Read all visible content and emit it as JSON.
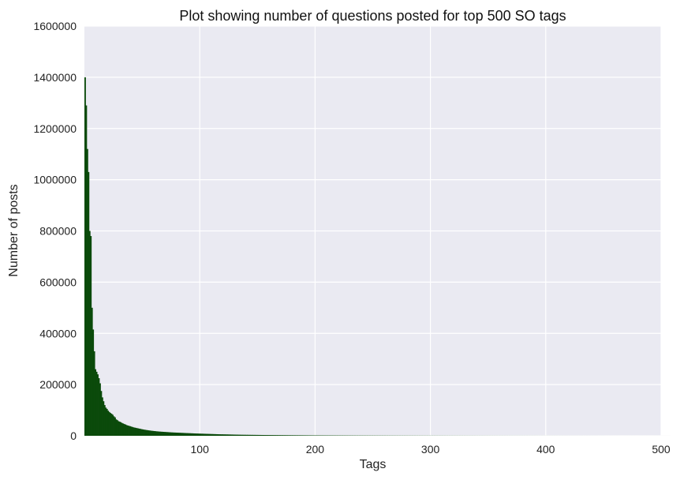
{
  "chart_data": {
    "type": "bar",
    "title": "Plot showing number of questions posted for top 500 SO tags",
    "xlabel": "Tags",
    "ylabel": "Number of posts",
    "xlim": [
      0,
      500
    ],
    "ylim": [
      0,
      1600000
    ],
    "x_ticks": [
      100,
      200,
      300,
      400,
      500
    ],
    "y_ticks": [
      0,
      200000,
      400000,
      600000,
      800000,
      1000000,
      1200000,
      1400000,
      1600000
    ],
    "grid": true,
    "legend": "none",
    "colors": {
      "bar": "#0b4a0b",
      "plot_background": "#eaeaf2",
      "grid": "#ffffff"
    },
    "series": [
      {
        "values": [
          1400000,
          1290000,
          1120000,
          1030000,
          800000,
          780000,
          500000,
          415000,
          330000,
          260000,
          250000,
          240000,
          225000,
          205000,
          175000,
          150000,
          135000,
          120000,
          110000,
          105000,
          98000,
          93000,
          89000,
          86000,
          82000,
          76000,
          72000,
          64000,
          61000,
          57000,
          55000,
          53000,
          50000,
          48000,
          46000,
          44000,
          42000,
          40000,
          39000,
          37500,
          36000,
          34500,
          33000,
          32000,
          31000,
          30000,
          29000,
          28000,
          27000,
          26000,
          25000,
          24200,
          23400,
          22700,
          22000,
          21300,
          20700,
          20100,
          19500,
          19000,
          18500,
          18000,
          17500,
          17100,
          16700,
          16300,
          16000,
          15700,
          15400,
          15100,
          14800,
          14500,
          14200,
          13900,
          13600,
          13300,
          13000,
          12800,
          12600,
          12400,
          12200,
          12000,
          11800,
          11600,
          11400,
          11200,
          11000,
          10800,
          10600,
          10400,
          10200,
          10000,
          9800,
          9600,
          9400,
          9200,
          9000,
          8850,
          8700,
          8550,
          8400,
          8250,
          8100,
          7950,
          7800,
          7650,
          7500,
          7350,
          7200,
          7050,
          6900,
          6750,
          6600,
          6450,
          6300,
          6150,
          6000,
          5900,
          5800,
          5700,
          5600,
          5500,
          5400,
          5300,
          5200,
          5100,
          5000,
          4900,
          4800,
          4700,
          4600,
          4500,
          4400,
          4300,
          4200,
          4100,
          4000,
          3950,
          3900,
          3850,
          3800,
          3750,
          3700,
          3650,
          3600,
          3550,
          3500,
          3450,
          3400,
          3350,
          3300,
          3250,
          3200,
          3150,
          3100,
          3050,
          3000,
          2960,
          2920,
          2880,
          2840,
          2800,
          2760,
          2720,
          2680,
          2640,
          2600,
          2560,
          2520,
          2480,
          2440,
          2400,
          2360,
          2320,
          2280,
          2240,
          2200,
          2170,
          2140,
          2110,
          2080,
          2050,
          2020,
          1990,
          1960,
          1930,
          1900,
          1870,
          1840,
          1810,
          1780,
          1750,
          1720,
          1690,
          1660,
          1630,
          1600,
          1580,
          1560,
          1540,
          1520,
          1500,
          1480,
          1460,
          1440,
          1420,
          1400,
          1380,
          1360,
          1340,
          1320,
          1300,
          1280,
          1260,
          1240,
          1220,
          1200,
          1185,
          1170,
          1155,
          1140,
          1125,
          1110,
          1095,
          1080,
          1065,
          1050,
          1035,
          1020,
          1005,
          990,
          975,
          960,
          945,
          930,
          915,
          900,
          890,
          880,
          870,
          860,
          850,
          840,
          830,
          820,
          810,
          800,
          790,
          780,
          770,
          760,
          750,
          740,
          730,
          720,
          710,
          700,
          692,
          684,
          676,
          668,
          660,
          652,
          644,
          636,
          628,
          620,
          612,
          604,
          596,
          588,
          580,
          572,
          564,
          556,
          548,
          540,
          534,
          528,
          522,
          516,
          510,
          504,
          498,
          492,
          486,
          480,
          474,
          468,
          462,
          456,
          450,
          444,
          438,
          432,
          426,
          420,
          415,
          410,
          405,
          400,
          395,
          390,
          385,
          380,
          375,
          370,
          365,
          360,
          355,
          350,
          345,
          340,
          335,
          330,
          325,
          320,
          316,
          312,
          308,
          304,
          300,
          296,
          292,
          288,
          284,
          280,
          276,
          272,
          268,
          264,
          260,
          256,
          252,
          248,
          244,
          240,
          237,
          234,
          231,
          228,
          225,
          222,
          219,
          216,
          213,
          210,
          207,
          204,
          201,
          198,
          195,
          192,
          189,
          186,
          183,
          180,
          178,
          176,
          174,
          172,
          170,
          168,
          166,
          164,
          162,
          160,
          158,
          156,
          154,
          152,
          150,
          148,
          146,
          144,
          142,
          140,
          138,
          136,
          134,
          132,
          130,
          128,
          126,
          124,
          122,
          120,
          118,
          116,
          114,
          112,
          110,
          108,
          106,
          104,
          102,
          100,
          99,
          98,
          97,
          96,
          95,
          94,
          93,
          92,
          91,
          90,
          89,
          88,
          87,
          86,
          85,
          84,
          83,
          82,
          81,
          80,
          79,
          78,
          77,
          76,
          75,
          74,
          73,
          72,
          71,
          70,
          69,
          68,
          67,
          66,
          65,
          64,
          63,
          62,
          61,
          60,
          59,
          58,
          57,
          56,
          55,
          54,
          53,
          52,
          51,
          50,
          49,
          48,
          47,
          46,
          45,
          44,
          43,
          42,
          41,
          40,
          39,
          38,
          37,
          36,
          35,
          34,
          33,
          32,
          31,
          30,
          30,
          30,
          30,
          30,
          30,
          30,
          30,
          30,
          30,
          30,
          30,
          30,
          30,
          30,
          30,
          30,
          30,
          30,
          30,
          30,
          30,
          30,
          30,
          30,
          30,
          30,
          30,
          30,
          30,
          30,
          30,
          30,
          30,
          30,
          30,
          30,
          30,
          30,
          30,
          30,
          30
        ]
      }
    ]
  }
}
